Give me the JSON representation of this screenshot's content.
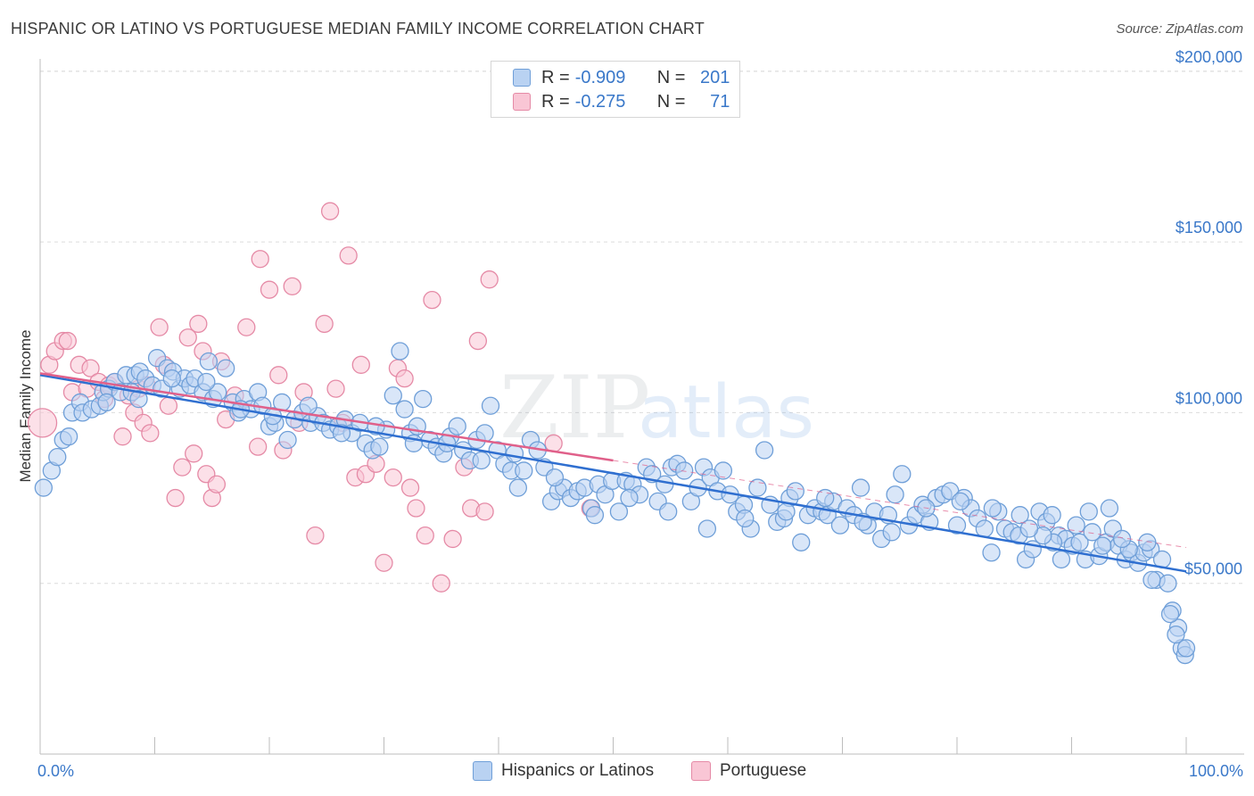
{
  "title": "HISPANIC OR LATINO VS PORTUGUESE MEDIAN FAMILY INCOME CORRELATION CHART",
  "source": "Source: ZipAtlas.com",
  "watermark": {
    "zip": "ZIP",
    "atlas": "atlas"
  },
  "legend": {
    "rows": [
      {
        "r_label": "R =",
        "r_value": "-0.909",
        "n_label": "N =",
        "n_value": "201",
        "color": "#a9c8f0",
        "border": "#6f9fd8"
      },
      {
        "r_label": "R =",
        "r_value": "-0.275",
        "n_label": "N =",
        "n_value": "71",
        "color": "#f8bfd0",
        "border": "#e58aa6"
      }
    ]
  },
  "bottom_legend": {
    "hispanic": "Hispanics or Latinos",
    "portuguese": "Portuguese"
  },
  "chart_data": {
    "type": "scatter",
    "title": "HISPANIC OR LATINO VS PORTUGUESE MEDIAN FAMILY INCOME CORRELATION CHART",
    "xlabel": "",
    "ylabel": "Median Family Income",
    "xlim": [
      0,
      100
    ],
    "ylim": [
      0,
      210000
    ],
    "x_tick_labels": {
      "left": "0.0%",
      "right": "100.0%"
    },
    "y_ticks": [
      {
        "value": 50000,
        "label": "$50,000"
      },
      {
        "value": 100000,
        "label": "$100,000"
      },
      {
        "value": 150000,
        "label": "$150,000"
      },
      {
        "value": 200000,
        "label": "$200,000"
      }
    ],
    "grid": true,
    "legend_position": "top-center",
    "series": [
      {
        "name": "Hispanics or Latinos",
        "color": "#6f9fd8",
        "fill": "#b9d2f2",
        "trend": {
          "x0": 0,
          "y0": 111000,
          "x1": 100,
          "y1": 53500,
          "color": "#2f6fd0"
        },
        "points": [
          [
            0.3,
            78000
          ],
          [
            1,
            83000
          ],
          [
            1.5,
            87000
          ],
          [
            2,
            92000
          ],
          [
            2.5,
            93000
          ],
          [
            2.8,
            100000
          ],
          [
            3.5,
            103000
          ],
          [
            3.7,
            100000
          ],
          [
            4.5,
            101000
          ],
          [
            5.2,
            102000
          ],
          [
            5.5,
            106000
          ],
          [
            6,
            107000
          ],
          [
            6.5,
            109000
          ],
          [
            7,
            106000
          ],
          [
            7.5,
            111000
          ],
          [
            8,
            106000
          ],
          [
            8.3,
            111000
          ],
          [
            8.7,
            112000
          ],
          [
            9.2,
            110000
          ],
          [
            9.8,
            108000
          ],
          [
            10.2,
            116000
          ],
          [
            10.6,
            107000
          ],
          [
            11.1,
            113000
          ],
          [
            11.6,
            112000
          ],
          [
            12.2,
            107000
          ],
          [
            12.6,
            110000
          ],
          [
            13.1,
            108000
          ],
          [
            13.5,
            110000
          ],
          [
            14.2,
            106000
          ],
          [
            14.7,
            115000
          ],
          [
            15.1,
            104000
          ],
          [
            15.5,
            106000
          ],
          [
            16.2,
            113000
          ],
          [
            16.8,
            103000
          ],
          [
            17.3,
            100000
          ],
          [
            17.8,
            104000
          ],
          [
            18.4,
            101000
          ],
          [
            19,
            106000
          ],
          [
            19.4,
            102000
          ],
          [
            20,
            96000
          ],
          [
            20.5,
            97000
          ],
          [
            21.1,
            103000
          ],
          [
            21.6,
            92000
          ],
          [
            22.2,
            98000
          ],
          [
            22.9,
            100000
          ],
          [
            23.6,
            97000
          ],
          [
            24.2,
            99000
          ],
          [
            24.7,
            97000
          ],
          [
            25.3,
            95000
          ],
          [
            26,
            96000
          ],
          [
            26.6,
            98000
          ],
          [
            27.2,
            94000
          ],
          [
            27.9,
            97000
          ],
          [
            28.4,
            91000
          ],
          [
            29,
            89000
          ],
          [
            29.6,
            90000
          ],
          [
            30.2,
            95000
          ],
          [
            30.8,
            105000
          ],
          [
            31.4,
            118000
          ],
          [
            31.8,
            101000
          ],
          [
            32.3,
            94000
          ],
          [
            32.9,
            96000
          ],
          [
            33.4,
            104000
          ],
          [
            34,
            92000
          ],
          [
            34.6,
            90000
          ],
          [
            35.2,
            88000
          ],
          [
            35.8,
            93000
          ],
          [
            36.4,
            96000
          ],
          [
            36.9,
            89000
          ],
          [
            37.5,
            86000
          ],
          [
            38.1,
            92000
          ],
          [
            38.8,
            94000
          ],
          [
            39.3,
            102000
          ],
          [
            39.9,
            89000
          ],
          [
            40.5,
            85000
          ],
          [
            41.1,
            83000
          ],
          [
            41.7,
            78000
          ],
          [
            42.2,
            83000
          ],
          [
            42.8,
            92000
          ],
          [
            43.4,
            89000
          ],
          [
            44,
            84000
          ],
          [
            44.6,
            74000
          ],
          [
            45.2,
            77000
          ],
          [
            45.7,
            78000
          ],
          [
            46.3,
            75000
          ],
          [
            46.9,
            77000
          ],
          [
            47.5,
            78000
          ],
          [
            48.1,
            72000
          ],
          [
            48.7,
            79000
          ],
          [
            49.3,
            76000
          ],
          [
            49.9,
            80000
          ],
          [
            50.5,
            71000
          ],
          [
            51.1,
            80000
          ],
          [
            51.7,
            79000
          ],
          [
            52.3,
            76000
          ],
          [
            52.9,
            84000
          ],
          [
            53.4,
            82000
          ],
          [
            53.9,
            74000
          ],
          [
            54.5,
            79000
          ],
          [
            55.1,
            84000
          ],
          [
            55.6,
            85000
          ],
          [
            56.2,
            83000
          ],
          [
            56.8,
            74000
          ],
          [
            57.4,
            78000
          ],
          [
            57.9,
            84000
          ],
          [
            58.5,
            81000
          ],
          [
            59.1,
            77000
          ],
          [
            59.6,
            83000
          ],
          [
            60.2,
            76000
          ],
          [
            60.8,
            71000
          ],
          [
            61.4,
            73000
          ],
          [
            62,
            66000
          ],
          [
            62.6,
            78000
          ],
          [
            63.2,
            89000
          ],
          [
            63.7,
            73000
          ],
          [
            64.3,
            68000
          ],
          [
            64.9,
            69000
          ],
          [
            65.4,
            75000
          ],
          [
            65.9,
            77000
          ],
          [
            66.4,
            62000
          ],
          [
            67,
            70000
          ],
          [
            67.6,
            72000
          ],
          [
            68.2,
            71000
          ],
          [
            68.7,
            70000
          ],
          [
            69.2,
            74000
          ],
          [
            69.8,
            67000
          ],
          [
            70.4,
            72000
          ],
          [
            71,
            70000
          ],
          [
            71.6,
            78000
          ],
          [
            72.2,
            67000
          ],
          [
            72.8,
            71000
          ],
          [
            73.4,
            63000
          ],
          [
            74,
            70000
          ],
          [
            74.6,
            76000
          ],
          [
            75.2,
            82000
          ],
          [
            75.8,
            67000
          ],
          [
            76.4,
            70000
          ],
          [
            77,
            73000
          ],
          [
            77.6,
            68000
          ],
          [
            78.2,
            75000
          ],
          [
            78.8,
            76000
          ],
          [
            79.4,
            77000
          ],
          [
            80,
            67000
          ],
          [
            80.6,
            75000
          ],
          [
            81.2,
            72000
          ],
          [
            81.8,
            69000
          ],
          [
            82.4,
            66000
          ],
          [
            83,
            59000
          ],
          [
            83.6,
            71000
          ],
          [
            84.2,
            66000
          ],
          [
            84.8,
            65000
          ],
          [
            85.4,
            64000
          ],
          [
            86,
            57000
          ],
          [
            86.6,
            60000
          ],
          [
            87.2,
            71000
          ],
          [
            87.8,
            68000
          ],
          [
            88.3,
            70000
          ],
          [
            88.9,
            64000
          ],
          [
            89.5,
            63000
          ],
          [
            90.1,
            61000
          ],
          [
            90.7,
            62000
          ],
          [
            91.2,
            57000
          ],
          [
            91.8,
            65000
          ],
          [
            92.4,
            58000
          ],
          [
            93,
            62000
          ],
          [
            93.6,
            66000
          ],
          [
            94.1,
            61000
          ],
          [
            94.7,
            57000
          ],
          [
            95.2,
            59000
          ],
          [
            95.8,
            56000
          ],
          [
            96.3,
            59000
          ],
          [
            96.9,
            60000
          ],
          [
            97.4,
            51000
          ],
          [
            97.9,
            57000
          ],
          [
            98.4,
            50000
          ],
          [
            98.8,
            42000
          ],
          [
            99.3,
            37000
          ],
          [
            99.6,
            31000
          ],
          [
            99.9,
            29000
          ],
          [
            100,
            31000
          ],
          [
            91.5,
            71000
          ],
          [
            93.3,
            72000
          ],
          [
            88.4,
            62000
          ],
          [
            85.5,
            70000
          ],
          [
            83.1,
            72000
          ],
          [
            80.3,
            74000
          ],
          [
            77.3,
            72000
          ],
          [
            74.3,
            65000
          ],
          [
            71.8,
            68000
          ],
          [
            68.5,
            75000
          ],
          [
            65.1,
            71000
          ],
          [
            61.5,
            69000
          ],
          [
            58.2,
            66000
          ],
          [
            54.8,
            71000
          ],
          [
            51.4,
            75000
          ],
          [
            48.4,
            70000
          ],
          [
            44.9,
            81000
          ],
          [
            41.4,
            88000
          ],
          [
            38.5,
            86000
          ],
          [
            35.5,
            91000
          ],
          [
            32.6,
            91000
          ],
          [
            29.3,
            96000
          ],
          [
            26.3,
            94000
          ],
          [
            23.4,
            102000
          ],
          [
            20.3,
            99000
          ],
          [
            17.5,
            101000
          ],
          [
            14.5,
            109000
          ],
          [
            11.5,
            110000
          ],
          [
            8.6,
            104000
          ],
          [
            5.8,
            103000
          ],
          [
            95,
            60000
          ],
          [
            97,
            51000
          ],
          [
            98.6,
            41000
          ],
          [
            99.1,
            35000
          ],
          [
            96.6,
            62000
          ],
          [
            94.4,
            63000
          ],
          [
            92.7,
            61000
          ],
          [
            90.4,
            67000
          ],
          [
            89.1,
            57000
          ],
          [
            87.5,
            64000
          ],
          [
            86.3,
            66000
          ]
        ]
      },
      {
        "name": "Portuguese",
        "color": "#e58aa6",
        "fill": "#f9c6d5",
        "trend": {
          "x0": 0,
          "y0": 111500,
          "x1": 50,
          "y1": 86000,
          "color": "#e0608a",
          "dashed_to_x": 100,
          "dashed_to_y": 60500
        },
        "points": [
          [
            0.2,
            97000
          ],
          [
            0.8,
            114000
          ],
          [
            1.3,
            118000
          ],
          [
            2,
            121000
          ],
          [
            2.4,
            121000
          ],
          [
            2.8,
            106000
          ],
          [
            3.4,
            114000
          ],
          [
            4.1,
            107000
          ],
          [
            4.4,
            113000
          ],
          [
            5.1,
            109000
          ],
          [
            5.6,
            104000
          ],
          [
            6,
            108000
          ],
          [
            6.5,
            109000
          ],
          [
            7.2,
            93000
          ],
          [
            7.7,
            105000
          ],
          [
            8.2,
            100000
          ],
          [
            8.6,
            107000
          ],
          [
            9,
            97000
          ],
          [
            9.3,
            108000
          ],
          [
            9.6,
            94000
          ],
          [
            10.4,
            125000
          ],
          [
            10.8,
            114000
          ],
          [
            11.2,
            102000
          ],
          [
            11.8,
            75000
          ],
          [
            12.4,
            84000
          ],
          [
            12.9,
            122000
          ],
          [
            13.4,
            88000
          ],
          [
            13.8,
            126000
          ],
          [
            14.2,
            118000
          ],
          [
            14.5,
            82000
          ],
          [
            15,
            75000
          ],
          [
            15.4,
            79000
          ],
          [
            15.8,
            115000
          ],
          [
            16.2,
            98000
          ],
          [
            17,
            105000
          ],
          [
            18,
            125000
          ],
          [
            19,
            90000
          ],
          [
            19.2,
            145000
          ],
          [
            20,
            136000
          ],
          [
            20.8,
            111000
          ],
          [
            21.2,
            89000
          ],
          [
            22,
            137000
          ],
          [
            22.6,
            97000
          ],
          [
            23,
            106000
          ],
          [
            24,
            64000
          ],
          [
            24.8,
            126000
          ],
          [
            25.3,
            159000
          ],
          [
            25.8,
            107000
          ],
          [
            26.4,
            97000
          ],
          [
            26.9,
            146000
          ],
          [
            27.5,
            81000
          ],
          [
            28,
            114000
          ],
          [
            28.4,
            82000
          ],
          [
            29.3,
            85000
          ],
          [
            30,
            56000
          ],
          [
            30.8,
            81000
          ],
          [
            31.2,
            113000
          ],
          [
            31.8,
            110000
          ],
          [
            32.3,
            78000
          ],
          [
            32.8,
            72000
          ],
          [
            33.6,
            64000
          ],
          [
            34.2,
            133000
          ],
          [
            35,
            50000
          ],
          [
            36,
            63000
          ],
          [
            37,
            84000
          ],
          [
            37.6,
            72000
          ],
          [
            38.2,
            121000
          ],
          [
            38.8,
            71000
          ],
          [
            39.2,
            139000
          ],
          [
            44.8,
            91000
          ],
          [
            48,
            72000
          ]
        ]
      }
    ]
  }
}
